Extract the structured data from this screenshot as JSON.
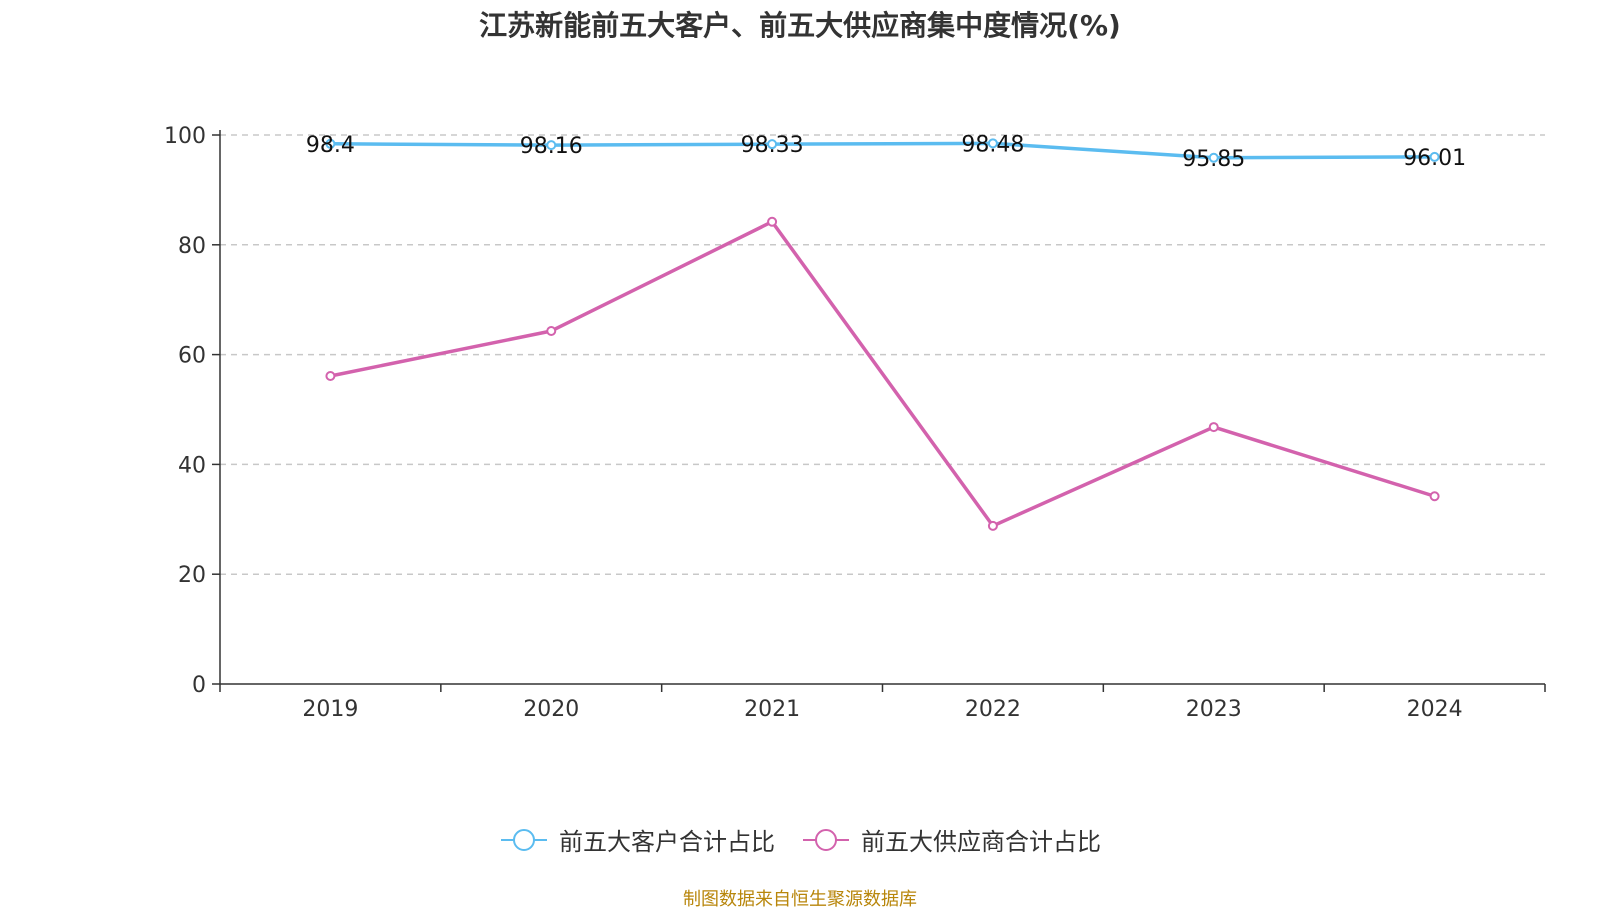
{
  "chart_data": {
    "type": "line",
    "title": "江苏新能前五大客户、前五大供应商集中度情况(%)",
    "categories": [
      "2019",
      "2020",
      "2021",
      "2022",
      "2023",
      "2024"
    ],
    "ylim": [
      0,
      100
    ],
    "yticks": [
      0,
      20,
      40,
      60,
      80,
      100
    ],
    "xlabel": "",
    "ylabel": "",
    "grid": "horizontal dashed",
    "legend_position": "bottom",
    "series": [
      {
        "name": "前五大客户合计占比",
        "color": "#5bbcf0",
        "values": [
          98.4,
          98.16,
          98.33,
          98.48,
          95.85,
          96.01
        ],
        "labels": [
          "98.4",
          "98.16",
          "98.33",
          "98.48",
          "95.85",
          "96.01"
        ]
      },
      {
        "name": "前五大供应商合计占比",
        "color": "#d362ad",
        "values": [
          56.1,
          64.3,
          84.2,
          28.8,
          46.8,
          34.2
        ]
      }
    ]
  },
  "source_note": "制图数据来自恒生聚源数据库"
}
